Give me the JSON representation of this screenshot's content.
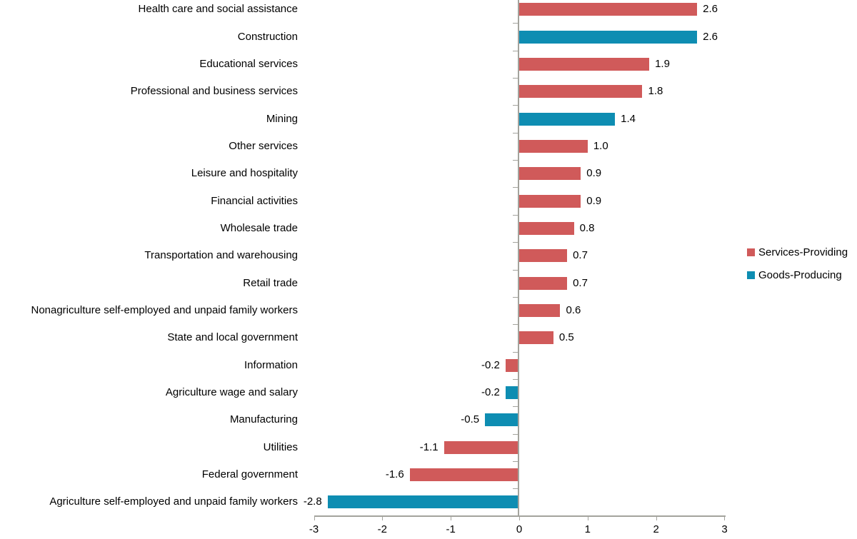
{
  "chart_data": {
    "type": "bar",
    "orientation": "horizontal",
    "title": "",
    "xlabel": "",
    "ylabel": "",
    "xlim": [
      -3,
      3
    ],
    "x_tick_labels": [
      "-3",
      "-2",
      "-1",
      "0",
      "1",
      "2",
      "3"
    ],
    "x_tick_values": [
      -3,
      -2,
      -1,
      0,
      1,
      2,
      3
    ],
    "grid": false,
    "legend_position": "right",
    "colors": {
      "services": "#d05a5a",
      "goods": "#0e8db2",
      "axis": "#a3a39d",
      "text": "#000000"
    },
    "legend": [
      {
        "label": "Services-Providing",
        "color_key": "services"
      },
      {
        "label": "Goods-Producing",
        "color_key": "goods"
      }
    ],
    "points": [
      {
        "label": "Health care and social assistance",
        "value": 2.6,
        "display": "2.6",
        "group": "services"
      },
      {
        "label": "Construction",
        "value": 2.6,
        "display": "2.6",
        "group": "goods"
      },
      {
        "label": "Educational services",
        "value": 1.9,
        "display": "1.9",
        "group": "services"
      },
      {
        "label": "Professional and business services",
        "value": 1.8,
        "display": "1.8",
        "group": "services"
      },
      {
        "label": "Mining",
        "value": 1.4,
        "display": "1.4",
        "group": "goods"
      },
      {
        "label": "Other services",
        "value": 1.0,
        "display": "1.0",
        "group": "services"
      },
      {
        "label": "Leisure and hospitality",
        "value": 0.9,
        "display": "0.9",
        "group": "services"
      },
      {
        "label": "Financial activities",
        "value": 0.9,
        "display": "0.9",
        "group": "services"
      },
      {
        "label": "Wholesale trade",
        "value": 0.8,
        "display": "0.8",
        "group": "services"
      },
      {
        "label": "Transportation and warehousing",
        "value": 0.7,
        "display": "0.7",
        "group": "services"
      },
      {
        "label": "Retail trade",
        "value": 0.7,
        "display": "0.7",
        "group": "services"
      },
      {
        "label": "Nonagriculture self-employed and unpaid family workers",
        "value": 0.6,
        "display": "0.6",
        "group": "services"
      },
      {
        "label": "State and local government",
        "value": 0.5,
        "display": "0.5",
        "group": "services"
      },
      {
        "label": "Information",
        "value": -0.2,
        "display": "-0.2",
        "group": "services"
      },
      {
        "label": "Agriculture wage and salary",
        "value": -0.2,
        "display": "-0.2",
        "group": "goods"
      },
      {
        "label": "Manufacturing",
        "value": -0.5,
        "display": "-0.5",
        "group": "goods"
      },
      {
        "label": "Utilities",
        "value": -1.1,
        "display": "-1.1",
        "group": "services"
      },
      {
        "label": "Federal government",
        "value": -1.6,
        "display": "-1.6",
        "group": "services"
      },
      {
        "label": "Agriculture self-employed and unpaid family workers",
        "value": -2.8,
        "display": "-2.8",
        "group": "goods"
      }
    ]
  }
}
